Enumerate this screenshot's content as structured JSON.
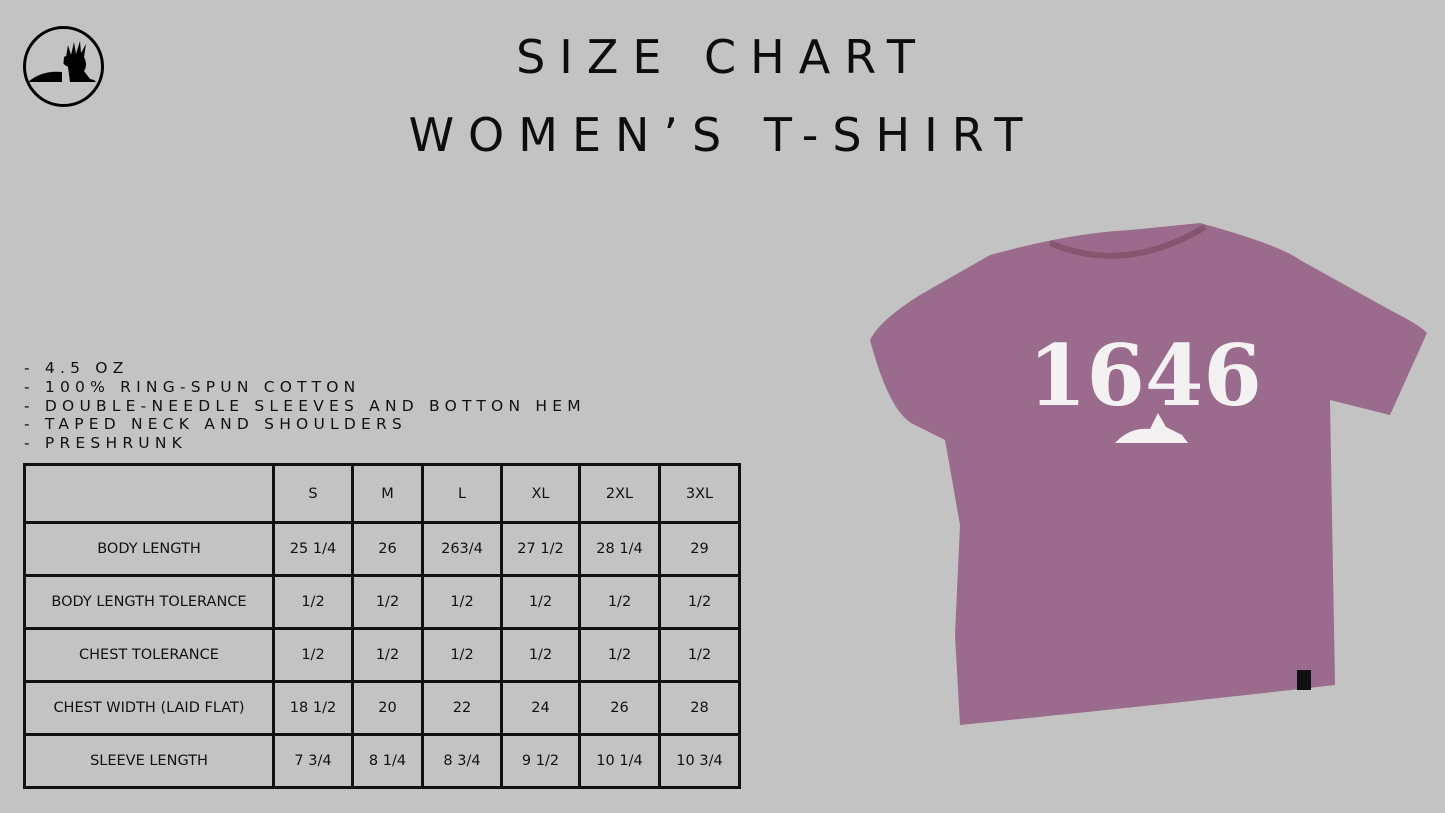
{
  "header": {
    "title_line1": "SIZE CHART",
    "title_line2": "WOMEN’S T-SHIRT"
  },
  "logo": {
    "icon": "lion-crown-logo"
  },
  "features": [
    "- 4.5 OZ",
    "- 100% RING-SPUN COTTON",
    "- DOUBLE-NEEDLE SLEEVES AND BOTTON HEM",
    "- TAPED NECK AND SHOULDERS",
    "- PRESHRUNK"
  ],
  "table": {
    "columns": [
      "",
      "S",
      "M",
      "L",
      "XL",
      "2XL",
      "3XL"
    ],
    "rows": [
      {
        "label": "BODY LENGTH",
        "values": [
          "25 1/4",
          "26",
          "263/4",
          "27 1/2",
          "28 1/4",
          "29"
        ]
      },
      {
        "label": "BODY LENGTH TOLERANCE",
        "values": [
          "1/2",
          "1/2",
          "1/2",
          "1/2",
          "1/2",
          "1/2"
        ]
      },
      {
        "label": "CHEST TOLERANCE",
        "values": [
          "1/2",
          "1/2",
          "1/2",
          "1/2",
          "1/2",
          "1/2"
        ]
      },
      {
        "label": "CHEST WIDTH (LAID FLAT)",
        "values": [
          "18 1/2",
          "20",
          "22",
          "24",
          "26",
          "28"
        ]
      },
      {
        "label": "SLEEVE LENGTH",
        "values": [
          "7 3/4",
          "8 1/4",
          "8 3/4",
          "9 1/2",
          "10 1/4",
          "10 3/4"
        ]
      }
    ]
  },
  "product": {
    "print_text": "1646",
    "shirt_color": "#9b6b8d",
    "background": "#c3c3c3"
  }
}
